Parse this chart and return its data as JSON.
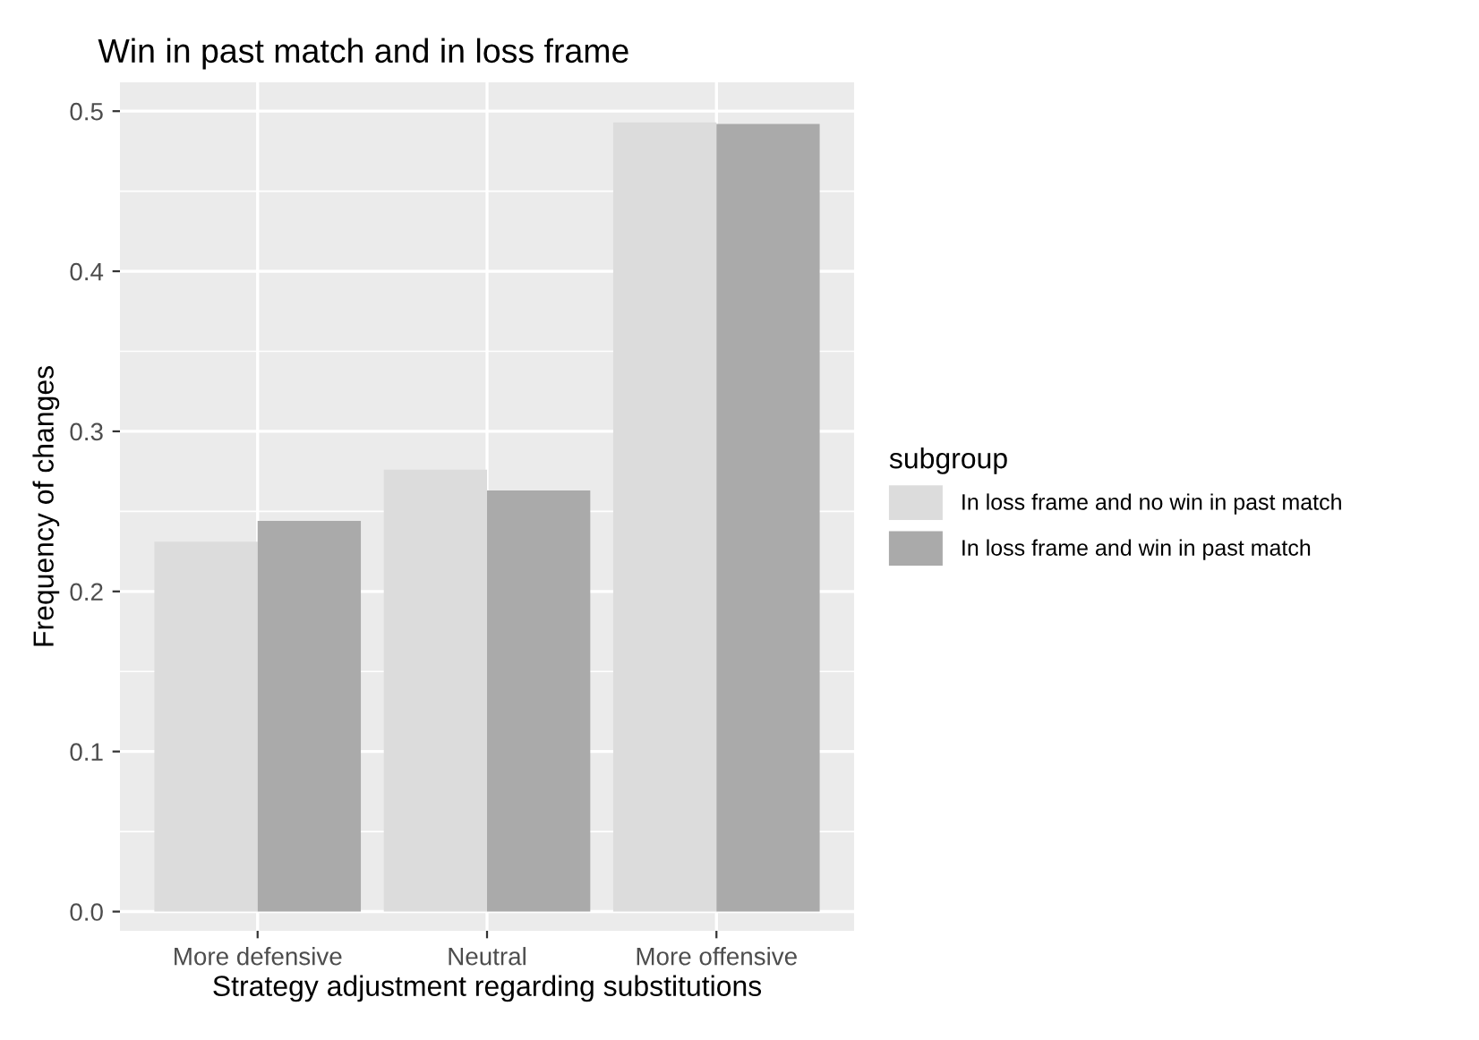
{
  "chart_data": {
    "type": "bar",
    "title": "Win in past match and in loss frame",
    "xlabel": "Strategy adjustment regarding substitutions",
    "ylabel": "Frequency of changes",
    "legend_title": "subgroup",
    "categories": [
      "More defensive",
      "Neutral",
      "More offensive"
    ],
    "series": [
      {
        "name": "In loss frame and no win in past match",
        "color": "#dcdcdc",
        "values": [
          0.231,
          0.276,
          0.493
        ]
      },
      {
        "name": "In loss frame and win in past match",
        "color": "#aaaaaa",
        "values": [
          0.244,
          0.263,
          0.492
        ]
      }
    ],
    "ylim": [
      -0.012,
      0.518
    ],
    "yticks": [
      {
        "value": 0,
        "label": "0.0"
      },
      0.1,
      0.2,
      0.3,
      0.4,
      0.5
    ],
    "grid": true,
    "legend": "right"
  }
}
